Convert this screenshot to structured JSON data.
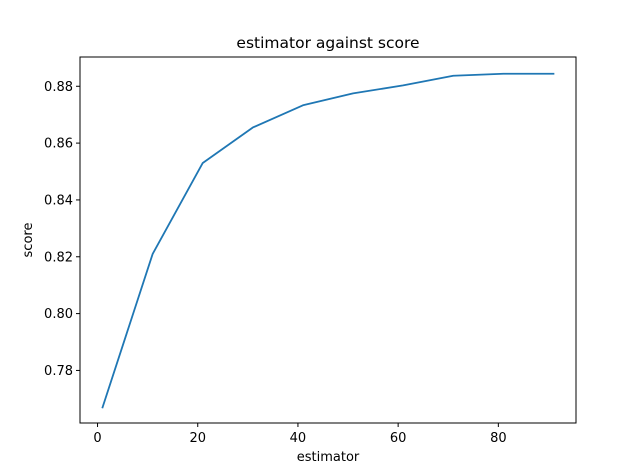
{
  "chart_data": {
    "type": "line",
    "title": "estimator against score",
    "xlabel": "estimator",
    "ylabel": "score",
    "xlim": [
      -3.5,
      95.5
    ],
    "ylim": [
      0.7615,
      0.8903
    ],
    "xticks": [
      0,
      20,
      40,
      60,
      80
    ],
    "xtick_labels": [
      "0",
      "20",
      "40",
      "60",
      "80"
    ],
    "yticks": [
      0.78,
      0.8,
      0.82,
      0.84,
      0.86,
      0.88
    ],
    "ytick_labels": [
      "0.78",
      "0.80",
      "0.82",
      "0.84",
      "0.86",
      "0.88"
    ],
    "grid": false,
    "legend": "none",
    "series": [
      {
        "color": "#1f77b4",
        "x": [
          1,
          11,
          21,
          31,
          41,
          51,
          61,
          71,
          81,
          91
        ],
        "y": [
          0.767,
          0.821,
          0.853,
          0.8655,
          0.8733,
          0.8775,
          0.8803,
          0.8837,
          0.8844,
          0.8844
        ]
      }
    ]
  }
}
